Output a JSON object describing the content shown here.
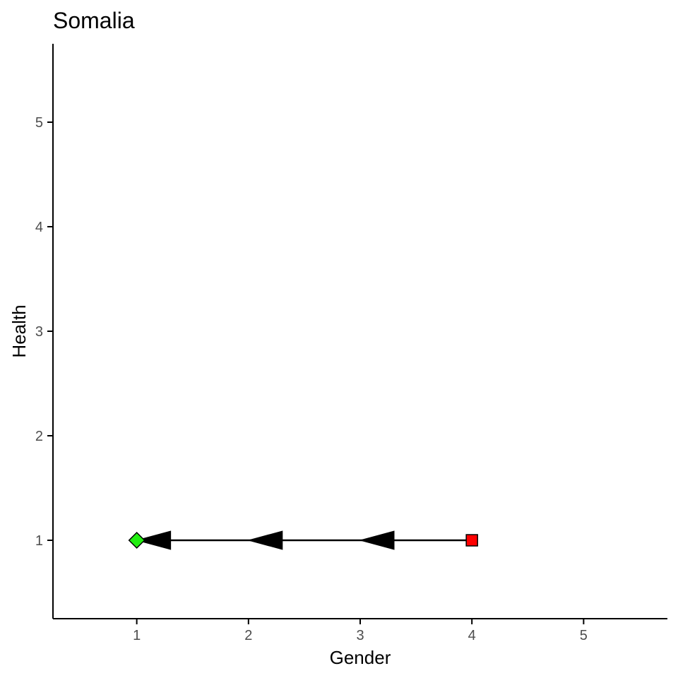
{
  "chart_data": {
    "type": "line",
    "title": "Somalia",
    "xlabel": "Gender",
    "ylabel": "Health",
    "xlim": [
      0.25,
      5.75
    ],
    "ylim": [
      0.25,
      5.75
    ],
    "x_ticks": [
      "1",
      "2",
      "3",
      "4",
      "5"
    ],
    "y_ticks": [
      "1",
      "2",
      "3",
      "4",
      "5"
    ],
    "grid": false,
    "path": {
      "from": {
        "x": 4,
        "y": 1
      },
      "to": {
        "x": 1,
        "y": 1
      },
      "arrow_points": [
        {
          "x": 3,
          "y": 1
        },
        {
          "x": 2,
          "y": 1
        },
        {
          "x": 1,
          "y": 1
        }
      ],
      "direction": "left"
    },
    "markers": [
      {
        "label": "start",
        "shape": "square",
        "x": 4,
        "y": 1
      },
      {
        "label": "end",
        "shape": "diamond",
        "x": 1,
        "y": 1
      }
    ]
  },
  "colors": {
    "start_marker": "#ff0000",
    "end_marker": "#22ee11",
    "line": "#000000",
    "axis": "#000000",
    "tick_text": "#4d4d4d"
  }
}
